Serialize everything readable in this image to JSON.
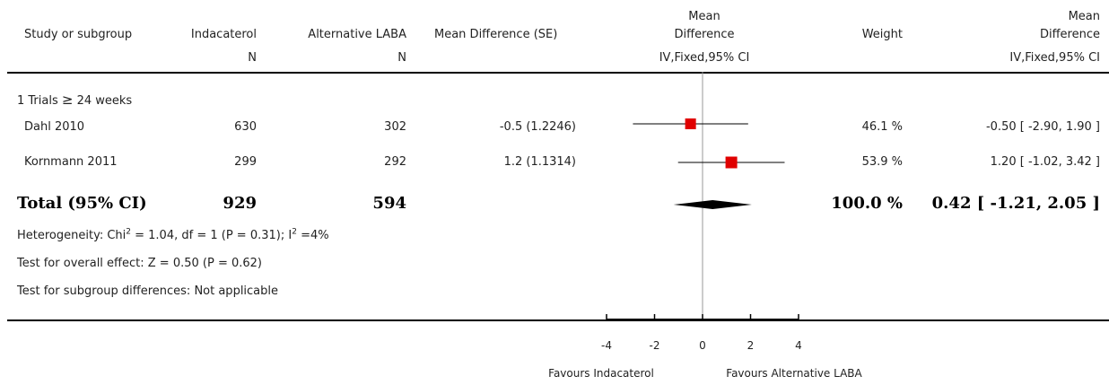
{
  "header": {
    "study": "Study or subgroup",
    "exp": "Indacaterol",
    "ctrl": "Alternative LABA",
    "md_se": "Mean Difference (SE)",
    "md_top": "Mean",
    "md_bottom": "Difference",
    "weight": "Weight",
    "md2_top": "Mean",
    "md2_bottom": "Difference",
    "exp_sub": "N",
    "ctrl_sub": "N",
    "method1": "IV,Fixed,95% CI",
    "method2": "IV,Fixed,95% CI"
  },
  "subgroup": {
    "label": "1 Trials ",
    "op": "≥",
    "tail": " 24 weeks"
  },
  "studies": [
    {
      "name": "Dahl 2010",
      "exp_n": "630",
      "ctrl_n": "302",
      "md_se": "-0.5 (1.2246)",
      "weight": "46.1 %",
      "ci_text": "-0.50 [ -2.90, 1.90 ]"
    },
    {
      "name": "Kornmann 2011",
      "exp_n": "299",
      "ctrl_n": "292",
      "md_se": "1.2 (1.1314)",
      "weight": "53.9 %",
      "ci_text": "1.20 [ -1.02, 3.42 ]"
    }
  ],
  "total": {
    "label": "Total (95% CI)",
    "exp_n": "929",
    "ctrl_n": "594",
    "weight": "100.0 %",
    "ci_text": "0.42 [ -1.21, 2.05 ]"
  },
  "stats": {
    "het_a": "Heterogeneity: Chi",
    "het_sup1": "2",
    "het_b": " = 1.04, df = 1 (P = 0.31); I",
    "het_sup2": "2",
    "het_c": " =4%",
    "overall": "Test for overall effect: Z = 0.50 (P = 0.62)",
    "subgroup_diff": "Test for subgroup differences: Not applicable"
  },
  "axis": {
    "ticks": [
      "-4",
      "-2",
      "0",
      "2",
      "4"
    ],
    "left_label": "Favours Indacaterol",
    "right_label": "Favours Alternative LABA"
  },
  "colors": {
    "marker": "#e00000",
    "line": "#000000",
    "null_line": "#999999"
  },
  "chart_data": {
    "type": "forest",
    "xlim": [
      -4,
      4
    ],
    "xticks": [
      -4,
      -2,
      0,
      2,
      4
    ],
    "null_value": 0,
    "studies": [
      {
        "name": "Dahl 2010",
        "estimate": -0.5,
        "lower": -2.9,
        "upper": 1.9,
        "weight": 46.1
      },
      {
        "name": "Kornmann 2011",
        "estimate": 1.2,
        "lower": -1.02,
        "upper": 3.42,
        "weight": 53.9
      }
    ],
    "pooled": {
      "estimate": 0.42,
      "lower": -1.21,
      "upper": 2.05
    }
  }
}
